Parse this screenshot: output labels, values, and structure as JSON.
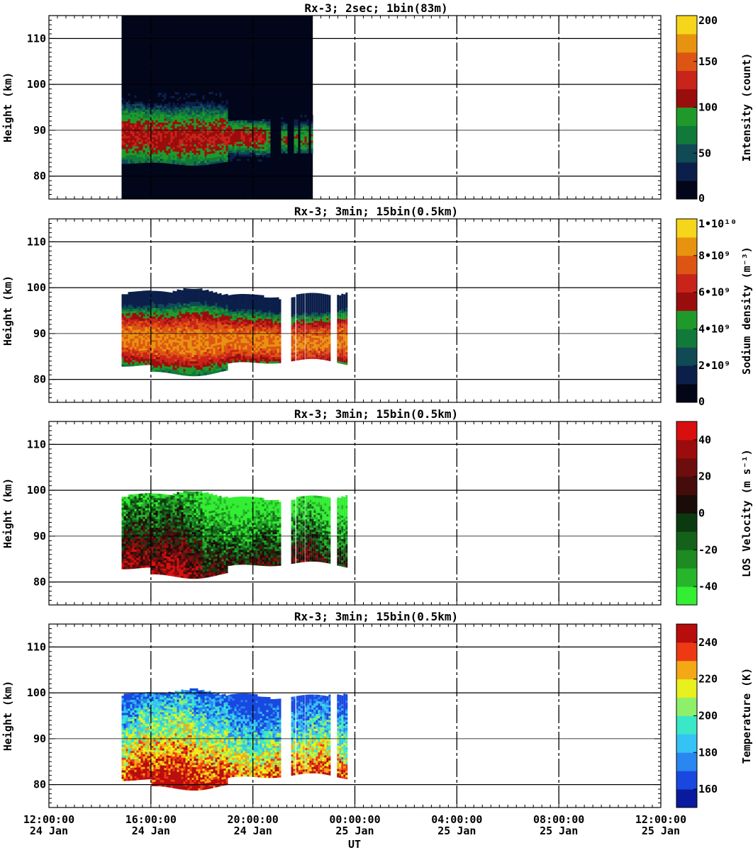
{
  "chart_data": [
    {
      "type": "heatmap",
      "title": "Rx-3;  2sec; 1bin(83m)",
      "ylabel": "Height (km)",
      "ylim": [
        75,
        115
      ],
      "yticks": [
        "80",
        "90",
        "100",
        "110"
      ],
      "xlim": [
        "24 Jan 12:00:00",
        "25 Jan 12:00:00"
      ],
      "grid": true,
      "colorbar": {
        "label": "Intensity (count)",
        "ticks": [
          "0",
          "50",
          "100",
          "150",
          "200"
        ],
        "range": [
          0,
          200
        ],
        "colors": [
          "#02061a",
          "#0b1f4a",
          "#0f4a55",
          "#117a3a",
          "#1f9a2a",
          "#9a0d0d",
          "#c8241a",
          "#dd5513",
          "#e8930f",
          "#f5d61a"
        ]
      },
      "data_coverage_hours": [
        [
          2.85,
          10.35
        ]
      ],
      "layer_peak_km": 88,
      "layer_range_km": [
        82,
        98
      ],
      "peak_value": 110
    },
    {
      "type": "heatmap",
      "title": "Rx-3; 3min; 15bin(0.5km)",
      "ylabel": "Height (km)",
      "ylim": [
        75,
        115
      ],
      "yticks": [
        "80",
        "90",
        "100",
        "110"
      ],
      "grid": true,
      "colorbar": {
        "label": "Sodium density (m⁻³)",
        "ticks": [
          "0",
          "2•10⁹",
          "4•10⁹",
          "6•10⁹",
          "8•10⁹",
          "1•10¹⁰"
        ],
        "range": [
          0,
          10000000000
        ],
        "colors": [
          "#020617",
          "#0b1f4a",
          "#0f4a55",
          "#117a3a",
          "#1f9a2a",
          "#9a0d0d",
          "#c8241a",
          "#dd5513",
          "#e8930f",
          "#f5d61a"
        ]
      },
      "data_coverage_hours": [
        [
          2.85,
          9.05
        ],
        [
          9.5,
          9.6
        ],
        [
          9.7,
          10.0
        ],
        [
          10.05,
          11.0
        ],
        [
          11.3,
          11.7
        ]
      ],
      "layer_peak_km": 88,
      "layer_range_km": [
        81,
        100
      ],
      "peak_value": 8000000000
    },
    {
      "type": "heatmap",
      "title": "Rx-3; 3min; 15bin(0.5km)",
      "ylabel": "Height (km)",
      "ylim": [
        75,
        115
      ],
      "yticks": [
        "80",
        "90",
        "100",
        "110"
      ],
      "grid": true,
      "colorbar": {
        "label": "LOS Velocity (m s⁻¹)",
        "ticks": [
          "-40",
          "-20",
          "0",
          "20",
          "40"
        ],
        "range": [
          -50,
          50
        ],
        "colors": [
          "#33ee33",
          "#27b52a",
          "#1d8a22",
          "#14621a",
          "#0c3a10",
          "#1a0c08",
          "#450c0c",
          "#6e0d0d",
          "#9c0c0c",
          "#d90f0f"
        ]
      },
      "data_coverage_hours": [
        [
          2.85,
          9.05
        ],
        [
          9.5,
          9.6
        ],
        [
          9.7,
          10.0
        ],
        [
          10.05,
          11.0
        ],
        [
          11.3,
          11.7
        ]
      ],
      "layer_range_km": [
        81,
        100
      ]
    },
    {
      "type": "heatmap",
      "title": "Rx-3; 3min; 15bin(0.5km)",
      "ylabel": "Height (km)",
      "ylim": [
        75,
        115
      ],
      "yticks": [
        "80",
        "90",
        "100",
        "110"
      ],
      "grid": true,
      "xticks": [
        {
          "time": "12:00:00",
          "date": "24 Jan"
        },
        {
          "time": "16:00:00",
          "date": "24 Jan"
        },
        {
          "time": "20:00:00",
          "date": "24 Jan"
        },
        {
          "time": "00:00:00",
          "date": "25 Jan"
        },
        {
          "time": "04:00:00",
          "date": "25 Jan"
        },
        {
          "time": "08:00:00",
          "date": "25 Jan"
        },
        {
          "time": "12:00:00",
          "date": "25 Jan"
        }
      ],
      "xlabel": "UT",
      "colorbar": {
        "label": "Temperature (K)",
        "ticks": [
          "160",
          "180",
          "200",
          "220",
          "240"
        ],
        "range": [
          150,
          250
        ],
        "colors": [
          "#0a1a9e",
          "#1848e0",
          "#2a86f0",
          "#35c2f5",
          "#3ae8c8",
          "#8ef06a",
          "#e8f01e",
          "#f5a815",
          "#ee3a12",
          "#b80d0d"
        ]
      },
      "data_coverage_hours": [
        [
          2.85,
          9.05
        ],
        [
          9.5,
          9.6
        ],
        [
          9.7,
          10.0
        ],
        [
          10.05,
          11.0
        ],
        [
          11.3,
          11.7
        ]
      ],
      "layer_range_km": [
        79,
        101
      ]
    }
  ]
}
